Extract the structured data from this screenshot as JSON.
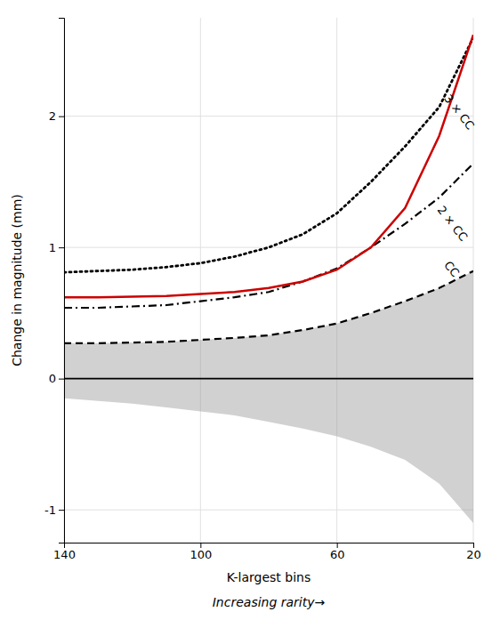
{
  "chart_data": {
    "type": "line",
    "xlabel": "K-largest bins",
    "ylabel": "Change in magnitude (mm)",
    "xlabel2": "Increasing rarity→",
    "xlim": [
      140,
      20
    ],
    "ylim": [
      -1.25,
      2.75
    ],
    "xticks": [
      140,
      100,
      60,
      20
    ],
    "yticks": [
      -1,
      0,
      1,
      2
    ],
    "grid": true,
    "x": [
      140,
      130,
      120,
      110,
      100,
      90,
      80,
      70,
      60,
      50,
      40,
      30,
      20
    ],
    "band": {
      "color": "#999999",
      "upper": [
        0.27,
        0.27,
        0.275,
        0.28,
        0.295,
        0.31,
        0.33,
        0.37,
        0.42,
        0.5,
        0.59,
        0.69,
        0.82
      ],
      "lower": [
        -0.15,
        -0.17,
        -0.19,
        -0.22,
        -0.25,
        -0.28,
        -0.33,
        -0.38,
        -0.44,
        -0.52,
        -0.62,
        -0.8,
        -1.1
      ]
    },
    "reference_line": {
      "y": 0,
      "color": "#000000"
    },
    "series": [
      {
        "color": "#000000",
        "line_style": "dashed",
        "values": [
          0.27,
          0.27,
          0.275,
          0.28,
          0.295,
          0.31,
          0.33,
          0.37,
          0.42,
          0.5,
          0.59,
          0.69,
          0.82
        ]
      },
      {
        "color": "#000000",
        "line_style": "dashdot",
        "values": [
          0.54,
          0.54,
          0.55,
          0.56,
          0.59,
          0.62,
          0.66,
          0.74,
          0.84,
          1.0,
          1.18,
          1.38,
          1.64
        ]
      },
      {
        "color": "#000000",
        "line_style": "dotted",
        "values": [
          0.81,
          0.82,
          0.83,
          0.85,
          0.88,
          0.93,
          1.0,
          1.1,
          1.26,
          1.5,
          1.77,
          2.07,
          2.6
        ]
      },
      {
        "color": "#cc0000",
        "line_style": "solid",
        "values": [
          0.62,
          0.62,
          0.625,
          0.63,
          0.645,
          0.66,
          0.69,
          0.74,
          0.83,
          1.0,
          1.3,
          1.85,
          2.62
        ]
      }
    ],
    "annotations": [
      {
        "text": "CC",
        "x": 28,
        "y": 0.88
      },
      {
        "text": "2 × CC",
        "x": 30,
        "y": 1.3
      },
      {
        "text": "3 × CC",
        "x": 28,
        "y": 2.15
      }
    ]
  }
}
